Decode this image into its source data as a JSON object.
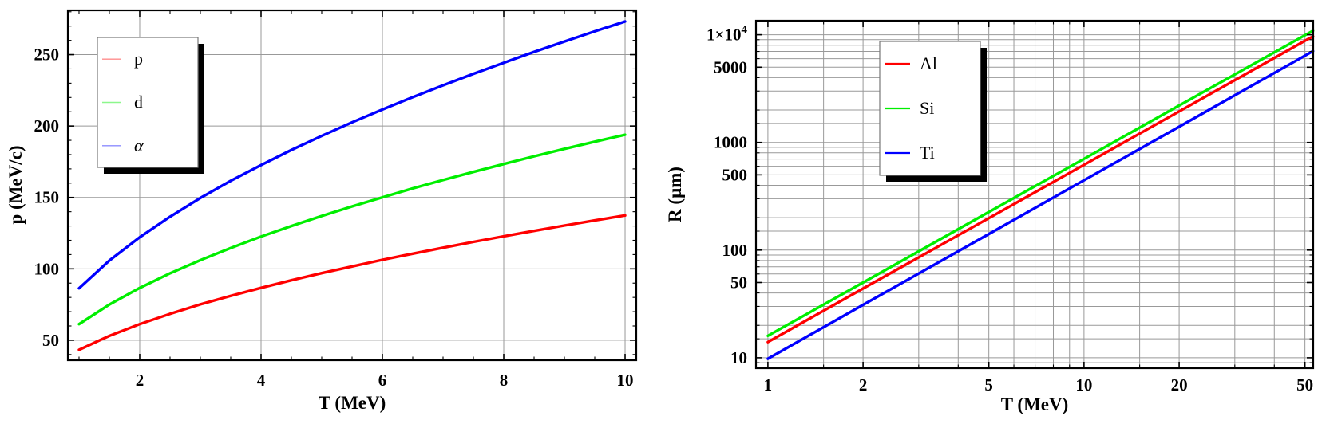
{
  "figure": {
    "background": "#ffffff"
  },
  "palette": {
    "red": "#ff0000",
    "green": "#00ee00",
    "blue": "#0000ff",
    "grid": "#999999",
    "frame": "#000000",
    "legend_shadow": "#000000",
    "legend_border": "#777777"
  },
  "chart_data": [
    {
      "id": "momentum-vs-kinetic-energy",
      "type": "line",
      "title": "",
      "xlabel": "T (MeV)",
      "ylabel": "p (MeV/c)",
      "xscale": "linear",
      "yscale": "linear",
      "xlim": [
        0.816,
        10.184
      ],
      "ylim": [
        36,
        281
      ],
      "grid": "major",
      "legend_position": "upper-left",
      "xticks": {
        "major": [
          2,
          4,
          6,
          8,
          10
        ],
        "major_labels": [
          "2",
          "4",
          "6",
          "8",
          "10"
        ],
        "minor": [
          1,
          1.5,
          2.5,
          3,
          3.5,
          4.5,
          5,
          5.5,
          6.5,
          7,
          7.5,
          8.5,
          9,
          9.5
        ]
      },
      "yticks": {
        "major": [
          50,
          100,
          150,
          200,
          250
        ],
        "major_labels": [
          "50",
          "100",
          "150",
          "200",
          "250"
        ],
        "minor": [
          40,
          60,
          70,
          80,
          90,
          110,
          120,
          130,
          140,
          160,
          170,
          180,
          190,
          210,
          220,
          230,
          240,
          260,
          270,
          280
        ]
      },
      "x": [
        1,
        1.5,
        2,
        2.5,
        3,
        3.5,
        4,
        4.5,
        5,
        5.5,
        6,
        6.5,
        7,
        7.5,
        8,
        8.5,
        9,
        9.5,
        10
      ],
      "series": [
        {
          "name": "p",
          "color": "#ff0000",
          "values": [
            43.3,
            53.1,
            61.3,
            68.5,
            75.1,
            81.1,
            86.7,
            92.0,
            97.0,
            101.7,
            106.3,
            110.6,
            114.8,
            118.9,
            122.8,
            126.6,
            130.3,
            133.9,
            137.4
          ]
        },
        {
          "name": "d",
          "color": "#00ee00",
          "values": [
            61.3,
            75.0,
            86.6,
            96.9,
            106.1,
            114.6,
            122.6,
            130.0,
            137.0,
            143.7,
            150.1,
            156.3,
            162.2,
            167.9,
            173.4,
            178.8,
            184.0,
            189.0,
            193.9
          ]
        },
        {
          "name": "α",
          "color": "#0000ff",
          "values": [
            86.4,
            105.8,
            122.1,
            136.5,
            149.6,
            161.6,
            172.7,
            183.2,
            193.1,
            202.6,
            211.6,
            220.2,
            228.5,
            236.6,
            244.3,
            251.9,
            259.2,
            266.3,
            273.2
          ]
        }
      ]
    },
    {
      "id": "range-vs-kinetic-energy",
      "type": "line",
      "title": "",
      "xlabel": "T (MeV)",
      "ylabel": "R (μm)",
      "xscale": "log",
      "yscale": "log",
      "xlim": [
        0.917,
        53.1
      ],
      "ylim": [
        8,
        13500
      ],
      "grid": "all",
      "legend_position": "upper-left",
      "xticks": {
        "major": [
          1,
          2,
          5,
          10,
          20,
          50
        ],
        "major_labels": [
          "1",
          "2",
          "5",
          "10",
          "20",
          "50"
        ],
        "minor": [
          1.5,
          3,
          4,
          6,
          7,
          8,
          9,
          15,
          30,
          40
        ]
      },
      "yticks": {
        "major": [
          10,
          50,
          100,
          500,
          1000,
          5000,
          10000
        ],
        "major_labels": [
          "10",
          "50",
          "100",
          "500",
          "1000",
          "5000",
          "1×10⁴"
        ],
        "minor": [
          9,
          15,
          20,
          30,
          40,
          60,
          70,
          80,
          90,
          150,
          200,
          300,
          400,
          600,
          700,
          800,
          900,
          1500,
          2000,
          3000,
          4000,
          6000,
          7000,
          8000,
          9000
        ]
      },
      "x": [
        1,
        2,
        5,
        10,
        20,
        50,
        53
      ],
      "series": [
        {
          "name": "Al",
          "color": "#ff0000",
          "values": [
            14,
            44,
            198,
            620,
            1940,
            8800,
            9650
          ]
        },
        {
          "name": "Si",
          "color": "#00ee00",
          "values": [
            16,
            50,
            226,
            704,
            2200,
            9900,
            10900
          ]
        },
        {
          "name": "Ti",
          "color": "#0000ff",
          "values": [
            9.8,
            31,
            141,
            445,
            1400,
            6400,
            7050
          ]
        }
      ]
    }
  ]
}
